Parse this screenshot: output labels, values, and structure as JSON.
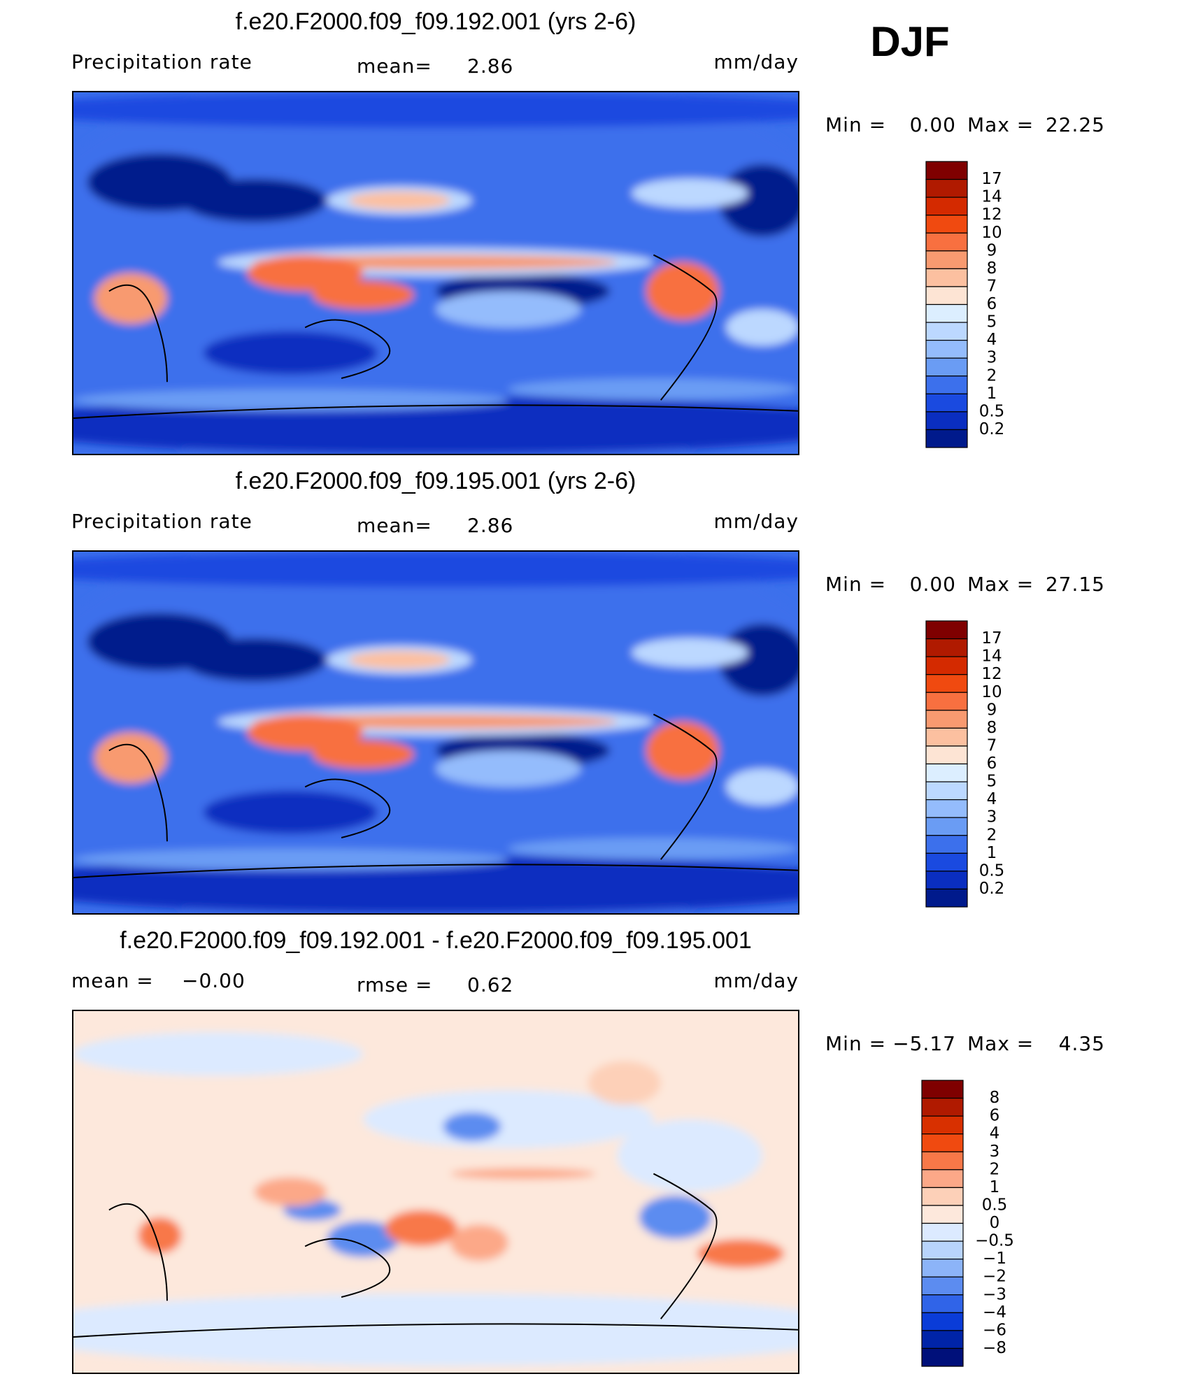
{
  "season": "DJF",
  "panels": [
    {
      "title": "f.e20.F2000.f09_f09.192.001 (yrs 2-6)",
      "left": [
        "Precipitation rate"
      ],
      "middle": [
        "mean=",
        "2.86"
      ],
      "units": "mm/day",
      "min_label": "Min =",
      "min": "0.00",
      "max_label": "Max =",
      "max": "22.25",
      "colorbar": {
        "colors": [
          "#7f0000",
          "#b01a00",
          "#d42a00",
          "#f04a10",
          "#f87040",
          "#f89a70",
          "#fcc0a0",
          "#fde4d4",
          "#dceeff",
          "#bcd8ff",
          "#94bcfc",
          "#6a9cf4",
          "#3c70ec",
          "#1a4ae0",
          "#0a2ec0",
          "#001a8c"
        ],
        "labels": [
          "17",
          "14",
          "12",
          "10",
          "9",
          "8",
          "7",
          "6",
          "5",
          "4",
          "3",
          "2",
          "1",
          "0.5",
          "0.2"
        ]
      }
    },
    {
      "title": "f.e20.F2000.f09_f09.195.001 (yrs 2-6)",
      "left": [
        "Precipitation rate"
      ],
      "middle": [
        "mean=",
        "2.86"
      ],
      "units": "mm/day",
      "min_label": "Min =",
      "min": "0.00",
      "max_label": "Max =",
      "max": "27.15",
      "colorbar": {
        "colors": [
          "#7f0000",
          "#b01a00",
          "#d42a00",
          "#f04a10",
          "#f87040",
          "#f89a70",
          "#fcc0a0",
          "#fde4d4",
          "#dceeff",
          "#bcd8ff",
          "#94bcfc",
          "#6a9cf4",
          "#3c70ec",
          "#1a4ae0",
          "#0a2ec0",
          "#001a8c"
        ],
        "labels": [
          "17",
          "14",
          "12",
          "10",
          "9",
          "8",
          "7",
          "6",
          "5",
          "4",
          "3",
          "2",
          "1",
          "0.5",
          "0.2"
        ]
      }
    },
    {
      "title": "f.e20.F2000.f09_f09.192.001 - f.e20.F2000.f09_f09.195.001",
      "left": [
        "mean =",
        "−0.00"
      ],
      "middle": [
        "rmse =",
        "0.62"
      ],
      "units": "mm/day",
      "min_label": "Min =",
      "min": "−5.17",
      "max_label": "Max =",
      "max": "4.35",
      "colorbar": {
        "colors": [
          "#7f0000",
          "#b01a00",
          "#d83000",
          "#f04a10",
          "#f87848",
          "#fca888",
          "#fdd0b8",
          "#fde8dc",
          "#dceaff",
          "#b8d4fc",
          "#8cb4f8",
          "#5c8cf0",
          "#3064e8",
          "#0a3cd8",
          "#0024a8",
          "#00107a"
        ],
        "labels": [
          "8",
          "6",
          "4",
          "3",
          "2",
          "1",
          "0.5",
          "0",
          "−0.5",
          "−1",
          "−2",
          "−3",
          "−4",
          "−6",
          "−8"
        ]
      }
    }
  ]
}
